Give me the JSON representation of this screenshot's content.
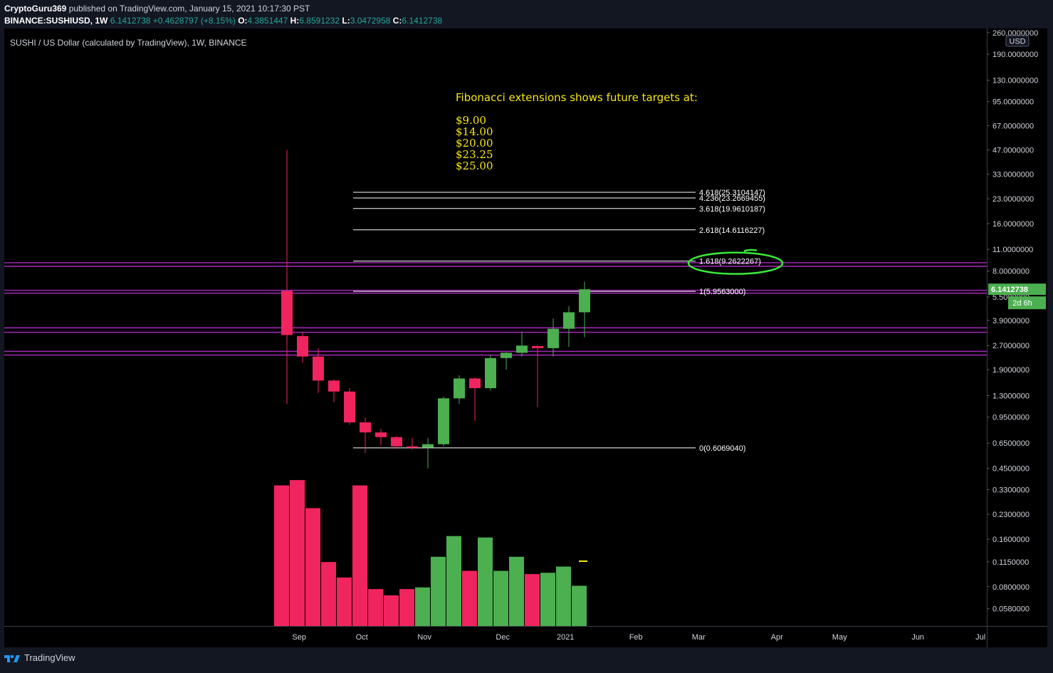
{
  "header": {
    "publisher": "CryptoGuru369",
    "published_text": "published on TradingView.com, January 15, 2021 10:17:30 PST",
    "symbol": "BINANCE:SUSHIUSD, 1W",
    "last": "6.1412738",
    "change": "+0.4628797 (+8.15%)",
    "o_label": "O:",
    "o_value": "4.3851447",
    "h_label": "H:",
    "h_value": "6.8591232",
    "l_label": "L:",
    "l_value": "3.0472958",
    "c_label": "C:",
    "c_value": "6.1412738"
  },
  "footer": {
    "brand": "TradingView"
  },
  "colors": {
    "bull": "#4caf50",
    "bear": "#f0245e",
    "fib": "#ffffff",
    "hline": "#9c27b0",
    "annotation": "#f5e615",
    "highlight": "#39e839"
  },
  "chart_data": {
    "type": "candlestick",
    "title": "SUSHI / US Dollar (calculated by TradingView), 1W, BINANCE",
    "currency": "USD",
    "y_scale": "log",
    "ylim": [
      0.05,
      265
    ],
    "y_ticks": [
      "260.0000000",
      "190.0000000",
      "130.0000000",
      "95.0000000",
      "67.0000000",
      "47.0000000",
      "33.0000000",
      "23.0000000",
      "16.0000000",
      "11.0000000",
      "8.0000000",
      "5.5000000",
      "3.9000000",
      "2.7000000",
      "1.9000000",
      "1.3000000",
      "0.9500000",
      "0.6500000",
      "0.4500000",
      "0.3300000",
      "0.2300000",
      "0.1600000",
      "0.1150000",
      "0.0800000",
      "0.0580000"
    ],
    "x_labels": [
      {
        "label": "Sep",
        "week": 1.1
      },
      {
        "label": "Oct",
        "week": 5.1
      },
      {
        "label": "Nov",
        "week": 9.1
      },
      {
        "label": "Dec",
        "week": 14.1
      },
      {
        "label": "2021",
        "week": 18.1
      },
      {
        "label": "Feb",
        "week": 22.6
      },
      {
        "label": "Mar",
        "week": 26.6
      },
      {
        "label": "Apr",
        "week": 31.6
      },
      {
        "label": "May",
        "week": 35.6
      },
      {
        "label": "Jun",
        "week": 40.6
      },
      {
        "label": "Jul",
        "week": 44.6
      }
    ],
    "candles": [
      {
        "o": 6.0,
        "h": 47.0,
        "l": 1.15,
        "c": 3.15
      },
      {
        "o": 3.1,
        "h": 3.3,
        "l": 2.1,
        "c": 2.3
      },
      {
        "o": 2.3,
        "h": 2.6,
        "l": 1.35,
        "c": 1.62
      },
      {
        "o": 1.62,
        "h": 1.65,
        "l": 1.18,
        "c": 1.38
      },
      {
        "o": 1.38,
        "h": 1.45,
        "l": 0.85,
        "c": 0.88
      },
      {
        "o": 0.88,
        "h": 0.95,
        "l": 0.56,
        "c": 0.76
      },
      {
        "o": 0.76,
        "h": 0.8,
        "l": 0.63,
        "c": 0.71
      },
      {
        "o": 0.71,
        "h": 0.72,
        "l": 0.6,
        "c": 0.62
      },
      {
        "o": 0.62,
        "h": 0.7,
        "l": 0.59,
        "c": 0.61
      },
      {
        "o": 0.61,
        "h": 0.7,
        "l": 0.45,
        "c": 0.64
      },
      {
        "o": 0.64,
        "h": 1.28,
        "l": 0.62,
        "c": 1.25
      },
      {
        "o": 1.25,
        "h": 1.75,
        "l": 1.15,
        "c": 1.67
      },
      {
        "o": 1.67,
        "h": 1.7,
        "l": 0.9,
        "c": 1.45
      },
      {
        "o": 1.45,
        "h": 2.35,
        "l": 1.4,
        "c": 2.25
      },
      {
        "o": 2.25,
        "h": 2.45,
        "l": 1.9,
        "c": 2.43
      },
      {
        "o": 2.43,
        "h": 3.3,
        "l": 2.3,
        "c": 2.7
      },
      {
        "o": 2.68,
        "h": 2.72,
        "l": 1.1,
        "c": 2.6
      },
      {
        "o": 2.6,
        "h": 4.0,
        "l": 2.3,
        "c": 3.45
      },
      {
        "o": 3.45,
        "h": 4.8,
        "l": 2.65,
        "c": 4.39
      },
      {
        "o": 4.39,
        "h": 6.86,
        "l": 3.05,
        "c": 6.14
      }
    ],
    "volume": [
      {
        "v": 0.39,
        "up": false
      },
      {
        "v": 0.425,
        "up": false
      },
      {
        "v": 0.27,
        "up": false
      },
      {
        "v": 0.113,
        "up": false
      },
      {
        "v": 0.088,
        "up": false
      },
      {
        "v": 0.39,
        "up": false
      },
      {
        "v": 0.073,
        "up": false
      },
      {
        "v": 0.066,
        "up": false
      },
      {
        "v": 0.073,
        "up": false
      },
      {
        "v": 0.075,
        "up": true
      },
      {
        "v": 0.123,
        "up": true
      },
      {
        "v": 0.172,
        "up": true
      },
      {
        "v": 0.098,
        "up": false
      },
      {
        "v": 0.168,
        "up": true
      },
      {
        "v": 0.098,
        "up": true
      },
      {
        "v": 0.123,
        "up": true
      },
      {
        "v": 0.093,
        "up": false
      },
      {
        "v": 0.095,
        "up": true
      },
      {
        "v": 0.105,
        "up": true
      },
      {
        "v": 0.077,
        "up": true
      }
    ],
    "fib_extension": {
      "start_week": 5,
      "end_week": 27,
      "levels": [
        {
          "label": "4.618(25.3104147)",
          "value": 25.3104147
        },
        {
          "label": "4.236(23.2669455)",
          "value": 23.2669455
        },
        {
          "label": "3.618(19.9610187)",
          "value": 19.9610187
        },
        {
          "label": "2.618(14.6116227)",
          "value": 14.6116227
        },
        {
          "label": "1.618(9.2622267)",
          "value": 9.2622267
        },
        {
          "label": "1(5.9563000)",
          "value": 5.9563
        },
        {
          "label": "0(0.6069040)",
          "value": 0.606904
        }
      ]
    },
    "horizontal_bands": [
      {
        "low": 8.6,
        "high": 9.05
      },
      {
        "low": 5.8,
        "high": 6.05
      },
      {
        "low": 3.28,
        "high": 3.5
      },
      {
        "low": 2.35,
        "high": 2.48
      }
    ],
    "annotation": {
      "heading": "Fibonacci extensions shows future targets at:",
      "targets": [
        "$9.00",
        "$14.00",
        "$20.00",
        "$23.25",
        "$25.00"
      ]
    },
    "price_label": "6.1412738",
    "countdown_label": "2d 6h"
  }
}
